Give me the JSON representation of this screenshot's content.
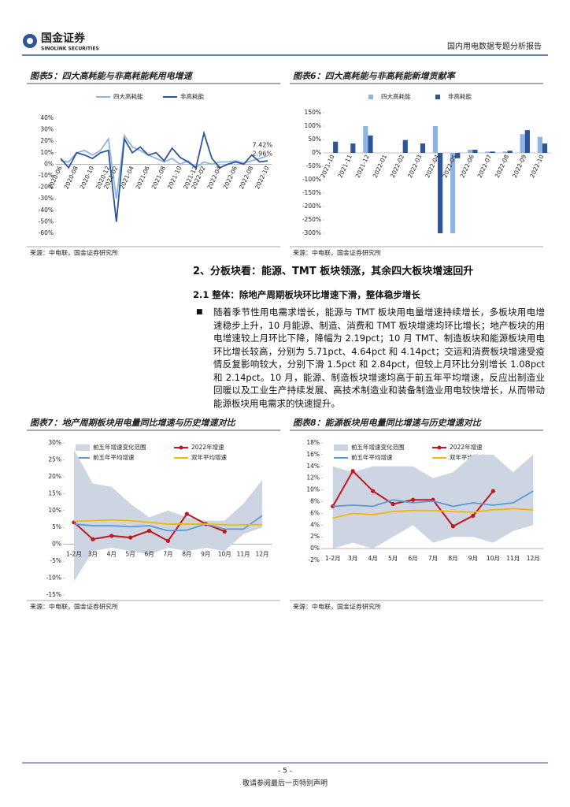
{
  "header": {
    "logo_cn": "国金证券",
    "logo_en": "SINOLINK SECURITIES",
    "report_title": "国内用电数据专题分析报告"
  },
  "figures": [
    {
      "title": "图表5：四大高耗能与非高耗能耗用电增速",
      "source": "来源：中电联，国金证券研究所",
      "chart": {
        "type": "line",
        "categories": [
          "2020-06",
          null,
          "2020-08",
          null,
          "2020-10",
          null,
          "2020-12",
          "2021-02",
          null,
          "2021-04",
          null,
          "2021-06",
          null,
          "2021-08",
          null,
          "2021-10",
          null,
          "2021-12",
          "2022-02",
          null,
          "2022-04",
          null,
          "2022-06",
          null,
          "2022-08",
          null,
          "2022-10"
        ],
        "series": [
          {
            "name": "四大高耗能",
            "color": "#8eb4e3",
            "values": [
              3,
              2,
              10,
              12,
              8,
              12,
              22,
              -30,
              25,
              15,
              12,
              8,
              5,
              2,
              5,
              0,
              3,
              -3,
              2,
              0,
              2,
              2,
              3,
              1,
              3,
              5,
              7.42
            ]
          },
          {
            "name": "非高耗能",
            "color": "#2e5597",
            "values": [
              5,
              -3,
              10,
              8,
              5,
              10,
              12,
              -50,
              22,
              10,
              15,
              8,
              10,
              3,
              14,
              6,
              2,
              -3,
              27,
              5,
              -3,
              0,
              2,
              0,
              8,
              2,
              2.96
            ]
          }
        ],
        "annotations": [
          "7.42%",
          "2.96%"
        ],
        "ylim": [
          -60,
          40
        ],
        "yticks": [
          {
            "value": -60,
            "label": "-60%"
          },
          {
            "value": -50,
            "label": "-50%"
          },
          {
            "value": -40,
            "label": "-40%"
          },
          {
            "value": -30,
            "label": "-30%"
          },
          {
            "value": -20,
            "label": "-20%"
          },
          {
            "value": -10,
            "label": "-10%"
          },
          {
            "value": 0,
            "label": "0%"
          },
          {
            "value": 10,
            "label": "10%"
          },
          {
            "value": 20,
            "label": "20%"
          },
          {
            "value": 30,
            "label": "30%"
          },
          {
            "value": 40,
            "label": "40%"
          }
        ]
      }
    },
    {
      "title": "图表6：四大高耗能与非高耗能新增贡献率",
      "source": "来源：中电联，国金证券研究所",
      "chart": {
        "type": "bar",
        "categories": [
          "2021-10",
          "2021-11",
          "2021-12",
          "2022-01",
          "2022-02",
          "2022-03",
          "2022-04",
          "2022-05",
          "2022-06",
          "2022-07",
          "2022-08",
          "2022-09",
          "2022-10"
        ],
        "series": [
          {
            "name": "四大高耗能",
            "color": "#8eb4e3",
            "values": [
              0,
              0,
              100,
              0,
              0,
              0,
              100,
              -300,
              12,
              5,
              5,
              70,
              60
            ]
          },
          {
            "name": "非高耗能",
            "color": "#2e5597",
            "values": [
              42,
              35,
              65,
              0,
              48,
              35,
              -300,
              -20,
              12,
              5,
              8,
              85,
              35
            ]
          }
        ],
        "ylim": [
          -300,
          150
        ],
        "yticks": [
          {
            "value": -300,
            "label": "-300%"
          },
          {
            "value": -250,
            "label": "-250%"
          },
          {
            "value": -200,
            "label": "-200%"
          },
          {
            "value": -150,
            "label": "-150%"
          },
          {
            "value": -100,
            "label": "-100%"
          },
          {
            "value": -50,
            "label": "-50%"
          },
          {
            "value": 0,
            "label": "0%"
          },
          {
            "value": 50,
            "label": "50%"
          },
          {
            "value": 100,
            "label": "100%"
          },
          {
            "value": 150,
            "label": "150%"
          }
        ]
      }
    },
    {
      "title": "图表7：地产周期板块用电量同比增速与历史增速对比",
      "source": "来源：中电联，国金证券研究所",
      "chart": {
        "type": "line",
        "categories": [
          "1-2月",
          "3月",
          "4月",
          "5月",
          "6月",
          "7月",
          "8月",
          "9月",
          "10月",
          "11月",
          "12月"
        ],
        "band": {
          "name": "前五年增速变化范围",
          "color": "#cdd5e3",
          "high": [
            28,
            18,
            17,
            12,
            8,
            10,
            8,
            7,
            7,
            12,
            19
          ],
          "low": [
            -11,
            -2,
            -1,
            -2,
            -3,
            -1,
            -2,
            -1,
            -2,
            3,
            5
          ]
        },
        "series": [
          {
            "name": "2022年增速",
            "color": "#c0161f",
            "marker": true,
            "values": [
              6.5,
              1.5,
              2.5,
              2,
              4,
              1,
              9,
              6,
              3.8,
              null,
              null
            ]
          },
          {
            "name": "前五年平均增速",
            "color": "#5b9bd5",
            "values": [
              6,
              5.5,
              5.5,
              5.2,
              5.5,
              4,
              4.2,
              6,
              4.5,
              4.5,
              8.5
            ]
          },
          {
            "name": "双年平均增速",
            "color": "#f5b800",
            "values": [
              6.8,
              7,
              7.2,
              7,
              6.5,
              6,
              6,
              6,
              5.8,
              5.8,
              5.8
            ]
          }
        ],
        "ylim": [
          -15,
          30
        ],
        "yticks": [
          {
            "value": -15,
            "label": "-15%"
          },
          {
            "value": -10,
            "label": "-10%"
          },
          {
            "value": -5,
            "label": "-5%"
          },
          {
            "value": 0,
            "label": "0%"
          },
          {
            "value": 5,
            "label": "5%"
          },
          {
            "value": 10,
            "label": "10%"
          },
          {
            "value": 15,
            "label": "15%"
          },
          {
            "value": 20,
            "label": "20%"
          },
          {
            "value": 25,
            "label": "25%"
          },
          {
            "value": 30,
            "label": "30%"
          }
        ]
      }
    },
    {
      "title": "图表8：能源板块用电量同比增速与历史增速对比",
      "source": "来源：中电联，国金证券研究所",
      "chart": {
        "type": "line",
        "categories": [
          "1-2月",
          "3月",
          "4月",
          "5月",
          "6月",
          "7月",
          "8月",
          "9月",
          "10月",
          "11月",
          "12月"
        ],
        "band": {
          "name": "前五年增速变化范围",
          "color": "#cdd5e3",
          "high": [
            14,
            13,
            14,
            14,
            14,
            12,
            13,
            16,
            16,
            13,
            16
          ],
          "low": [
            0,
            1,
            0,
            2,
            4,
            1,
            2,
            2,
            1,
            3,
            4
          ]
        },
        "series": [
          {
            "name": "2022年增速",
            "color": "#c0161f",
            "marker": true,
            "values": [
              7.2,
              13.2,
              9.8,
              7.6,
              8.3,
              8.3,
              3.8,
              5.6,
              9.8,
              null,
              null
            ]
          },
          {
            "name": "前五年平均增速",
            "color": "#5b9bd5",
            "values": [
              7.2,
              7.4,
              7.2,
              8.3,
              7.8,
              8.1,
              7.2,
              7.8,
              7.4,
              7.8,
              9.8
            ]
          },
          {
            "name": "双年平均增速",
            "color": "#f5b800",
            "values": [
              5.2,
              6,
              5.8,
              6.3,
              6.5,
              6.5,
              6.3,
              6.2,
              6.6,
              6.8,
              6.6
            ]
          }
        ],
        "ylim": [
          -2,
          18
        ],
        "yticks": [
          {
            "value": -2,
            "label": "-2%"
          },
          {
            "value": 0,
            "label": "0%"
          },
          {
            "value": 2,
            "label": "2%"
          },
          {
            "value": 4,
            "label": "4%"
          },
          {
            "value": 6,
            "label": "6%"
          },
          {
            "value": 8,
            "label": "8%"
          },
          {
            "value": 10,
            "label": "10%"
          },
          {
            "value": 12,
            "label": "12%"
          },
          {
            "value": 14,
            "label": "14%"
          },
          {
            "value": 16,
            "label": "16%"
          },
          {
            "value": 18,
            "label": "18%"
          }
        ]
      }
    }
  ],
  "section": {
    "heading": "2、分板块看：能源、TMT 板块领涨，其余四大板块增速回升",
    "subheading": "2.1 整体：除地产周期板块环比增速下滑，整体稳步增长",
    "paragraph": "随着季节性用电需求增长，能源与 TMT 板块用电量增速持续增长，多板块用电增速稳步上升，10 月能源、制造、消费和 TMT 板块增速均环比增长；地产板块的用电增速较上月环比下降，降幅为 2.19pct；10 月 TMT、制造板块和能源板块用电环比增长较高，分别为 5.71pct、4.64pct 和 4.14pct；交运和消费板块增速受疫情反复影响较大，分别下滑 1.5pct 和 2.84pct，但较上月环比分别增长 1.08pct 和 2.14pct。10 月，能源、制造板块增速均高于前五年平均增速，反应出制造业回暖以及工业生产持续发展、高技术制造业和装备制造业用电较快增长，从而带动能源板块用电需求的快速提升。"
  },
  "footer": {
    "page": "- 5 -",
    "disclaimer": "敬请参阅最后一页特别声明"
  }
}
